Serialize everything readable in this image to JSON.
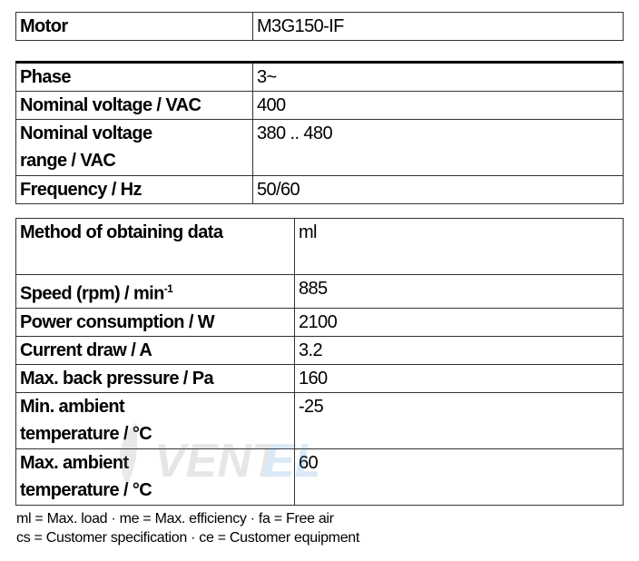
{
  "motor": {
    "label": "Motor",
    "value": "M3G150-IF"
  },
  "electrical": [
    {
      "label": "Phase",
      "value": "3~"
    },
    {
      "label": "Nominal voltage / VAC",
      "value": "400"
    },
    {
      "label": "Nominal voltage range / VAC",
      "value": "380 .. 480"
    },
    {
      "label": "Frequency / Hz",
      "value": "50/60"
    }
  ],
  "performance": [
    {
      "label": "Method of obtaining data",
      "value": "ml"
    },
    {
      "label": "Speed (rpm) / min",
      "sup": "-1",
      "value": "885"
    },
    {
      "label": "Power consumption / W",
      "value": "2100"
    },
    {
      "label": "Current draw / A",
      "value": "3.2"
    },
    {
      "label": "Max. back pressure / Pa",
      "value": "160"
    },
    {
      "label": "Min. ambient temperature / °C",
      "value": "-25"
    },
    {
      "label": "Max. ambient temperature / °C",
      "value": "60"
    }
  ],
  "footnotes": [
    "ml = Max. load · me = Max. efficiency · fa = Free air",
    "cs = Customer specification · ce = Customer equipment"
  ],
  "watermark": "VENTEL"
}
